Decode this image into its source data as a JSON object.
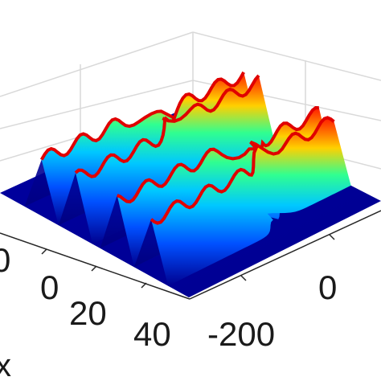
{
  "chart_data": {
    "type": "surface3d",
    "colormap": "jet",
    "grid": true,
    "axes": {
      "x": {
        "label": "x",
        "ticks": [
          0,
          20,
          40
        ],
        "tick_labels": [
          "0",
          "20",
          "40"
        ]
      },
      "y": {
        "label": "",
        "ticks": [
          -200,
          0
        ],
        "tick_labels": [
          "-200",
          "0"
        ]
      },
      "z": {
        "label": "",
        "tick_labels": []
      }
    },
    "partial_tick_label": "0",
    "surface": {
      "description_free": true,
      "ridge_count": 4,
      "collision_centers": [
        {
          "ridges": [
            1,
            2
          ],
          "y_fraction": 0.55
        },
        {
          "ridges": [
            3,
            4
          ],
          "y_fraction": 0.62
        }
      ],
      "ridge_peak_relative_height": 1.0,
      "background_level": 0.0
    },
    "colors": {
      "low": "#00008f",
      "mid": "#00ffff",
      "high": "#ff0000",
      "grid": "#d9d9d9",
      "axis": "#262626"
    }
  }
}
